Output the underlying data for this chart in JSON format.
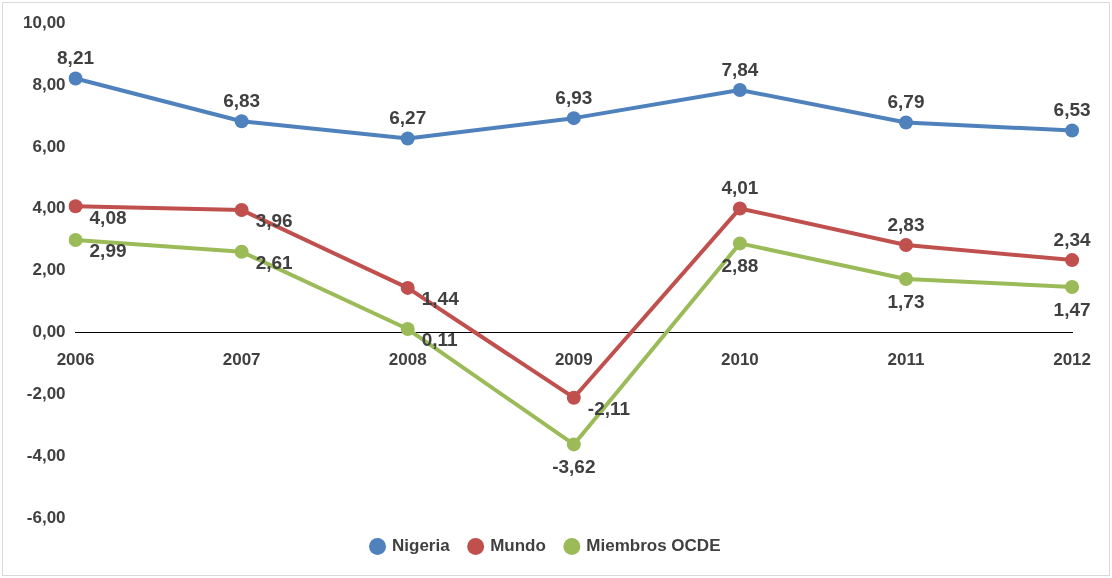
{
  "chart_data": {
    "type": "line",
    "categories": [
      "2006",
      "2007",
      "2008",
      "2009",
      "2010",
      "2011",
      "2012"
    ],
    "series": [
      {
        "name": "Nigeria",
        "color": "#4f81bd",
        "values": [
          8.21,
          6.83,
          6.27,
          6.93,
          7.84,
          6.79,
          6.53
        ],
        "value_labels": [
          "8,21",
          "6,83",
          "6,27",
          "6,93",
          "7,84",
          "6,79",
          "6,53"
        ]
      },
      {
        "name": "Mundo",
        "color": "#c0504d",
        "values": [
          4.08,
          3.96,
          1.44,
          -2.11,
          4.01,
          2.83,
          2.34
        ],
        "value_labels": [
          "4,08",
          "3,96",
          "1,44",
          "-2,11",
          "4,01",
          "2,83",
          "2,34"
        ]
      },
      {
        "name": "Miembros OCDE",
        "color": "#9bbb59",
        "values": [
          2.99,
          2.61,
          0.11,
          -3.62,
          2.88,
          1.73,
          1.47
        ],
        "value_labels": [
          "2,99",
          "2,61",
          "0,11",
          "-3,62",
          "2,88",
          "1,73",
          "1,47"
        ]
      }
    ],
    "ylim": [
      -6,
      10
    ],
    "yticks": [
      {
        "value": -6,
        "label": "-6,00"
      },
      {
        "value": -4,
        "label": "-4,00"
      },
      {
        "value": -2,
        "label": "-2,00"
      },
      {
        "value": 0,
        "label": "0,00"
      },
      {
        "value": 2,
        "label": "2,00"
      },
      {
        "value": 4,
        "label": "4,00"
      },
      {
        "value": 6,
        "label": "6,00"
      },
      {
        "value": 8,
        "label": "8,00"
      },
      {
        "value": 10,
        "label": "10,00"
      }
    ],
    "grid": false,
    "legend": "bottom",
    "marker": "circle",
    "line_style": "solid"
  }
}
